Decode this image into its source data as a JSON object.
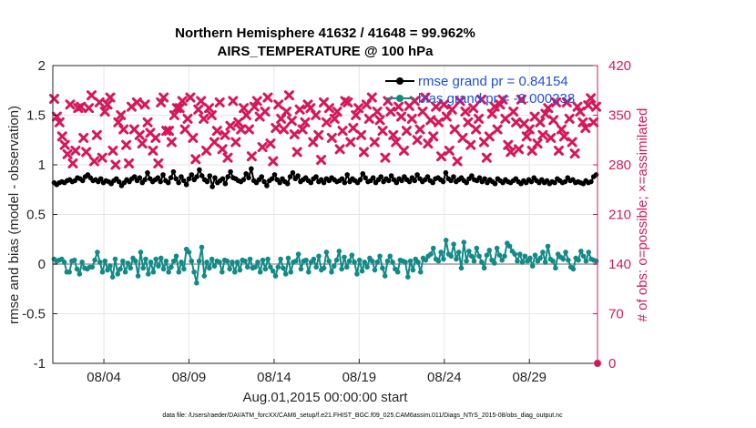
{
  "figure": {
    "title_line1": "Northern Hemisphere 41632 / 41648 = 99.962%",
    "title_line2": "AIRS_TEMPERATURE @ 100 hPa",
    "xlabel": "Aug.01,2015 00:00:00 start",
    "ylabel_left": "rmse and bias (model - observation)",
    "ylabel_right": "# of obs: o=possible; ×=assimilated",
    "footnote": "data file: /Users/raeder/DAI/ATM_forcXX/CAM6_setup/f.e21.FHIST_BGC.f09_025.CAM6assim.011/Diags_NTrS_2015-08/obs_diag_output.nc"
  },
  "colors": {
    "rmse": "#000000",
    "bias": "#138a86",
    "obs": "#d6185b",
    "legend_text": "#1f4fe0",
    "zero_line": "#b4b4b4",
    "grid": "#e6e6e6"
  },
  "chart_data": {
    "type": "line",
    "x_range_days": [
      0,
      32
    ],
    "x_ticks": [
      {
        "day": 3,
        "label": "08/04"
      },
      {
        "day": 8,
        "label": "08/09"
      },
      {
        "day": 13,
        "label": "08/14"
      },
      {
        "day": 18,
        "label": "08/19"
      },
      {
        "day": 23,
        "label": "08/24"
      },
      {
        "day": 28,
        "label": "08/29"
      }
    ],
    "y_left": {
      "min": -1,
      "max": 2,
      "ticks": [
        "-1",
        "-0.5",
        "0",
        "0.5",
        "1",
        "1.5",
        "2"
      ]
    },
    "y_right": {
      "min": 0,
      "max": 420,
      "ticks": [
        "0",
        "70",
        "140",
        "210",
        "280",
        "350",
        "420"
      ]
    },
    "legend": [
      {
        "key": "rmse",
        "label": "rmse grand pr =  0.84154"
      },
      {
        "key": "bias",
        "label": "bias grand pr = -0.000238"
      }
    ],
    "series": [
      {
        "key": "rmse",
        "axis": "left",
        "values": [
          0.82,
          0.8,
          0.82,
          0.83,
          0.82,
          0.84,
          0.85,
          0.83,
          0.84,
          0.87,
          0.86,
          0.84,
          0.88,
          0.9,
          0.87,
          0.84,
          0.85,
          0.83,
          0.86,
          0.82,
          0.84,
          0.83,
          0.81,
          0.84,
          0.86,
          0.83,
          0.79,
          0.82,
          0.85,
          0.83,
          0.86,
          0.88,
          0.84,
          0.87,
          0.82,
          0.85,
          0.92,
          0.86,
          0.83,
          0.85,
          0.87,
          0.83,
          0.9,
          0.84,
          0.82,
          0.87,
          0.93,
          0.86,
          0.82,
          0.88,
          0.84,
          0.8,
          0.86,
          0.9,
          0.85,
          0.88,
          0.95,
          0.89,
          0.85,
          0.83,
          0.89,
          0.78,
          0.87,
          0.82,
          0.84,
          0.86,
          0.81,
          0.88,
          0.93,
          0.87,
          0.86,
          0.84,
          0.83,
          0.85,
          0.91,
          0.87,
          0.96,
          0.84,
          0.82,
          0.85,
          0.88,
          0.83,
          0.79,
          0.84,
          0.86,
          0.9,
          0.85,
          0.82,
          0.86,
          0.83,
          0.81,
          0.88,
          0.92,
          0.86,
          0.89,
          0.83,
          0.85,
          0.87,
          0.84,
          0.82,
          0.86,
          0.88,
          0.83,
          0.85,
          0.82,
          0.86,
          0.84,
          0.87,
          0.85,
          0.83,
          0.84,
          0.86,
          0.82,
          0.9,
          0.83,
          0.86,
          0.84,
          0.82,
          0.85,
          0.91,
          0.87,
          0.83,
          0.84,
          0.87,
          0.82,
          0.85,
          0.88,
          0.83,
          0.86,
          0.84,
          0.89,
          0.85,
          0.82,
          0.86,
          0.84,
          0.88,
          0.85,
          0.83,
          0.87,
          0.84,
          0.9,
          0.86,
          0.83,
          0.85,
          0.88,
          0.84,
          0.82,
          0.86,
          0.87,
          0.85,
          0.83,
          0.92,
          0.86,
          0.84,
          0.88,
          0.83,
          0.85,
          0.87,
          0.84,
          0.82,
          0.86,
          0.89,
          0.85,
          0.84,
          0.87,
          0.83,
          0.86,
          0.82,
          0.85,
          0.83,
          0.81,
          0.86,
          0.84,
          0.82,
          0.85,
          0.83,
          0.82,
          0.84,
          0.86,
          0.83,
          0.81,
          0.84,
          0.82,
          0.85,
          0.83,
          0.87,
          0.84,
          0.82,
          0.85,
          0.82,
          0.84,
          0.81,
          0.83,
          0.82,
          0.86,
          0.84,
          0.82,
          0.83,
          0.87,
          0.84,
          0.85,
          0.82,
          0.83,
          0.82,
          0.81,
          0.84,
          0.82,
          0.83,
          0.88,
          0.9
        ]
      },
      {
        "key": "bias",
        "axis": "left",
        "values": [
          0.05,
          0.03,
          0.04,
          0.05,
          0.02,
          -0.08,
          -0.08,
          0.03,
          0.04,
          -0.05,
          -0.1,
          0.02,
          -0.04,
          -0.05,
          -0.03,
          -0.03,
          0.04,
          0.12,
          0.02,
          -0.08,
          0.03,
          -0.06,
          -0.02,
          -0.13,
          0.05,
          -0.1,
          -0.05,
          0.03,
          -0.08,
          0.01,
          -0.04,
          0.06,
          0.03,
          -0.12,
          0.12,
          -0.04,
          0.05,
          -0.1,
          0.02,
          -0.08,
          0.05,
          -0.02,
          0.06,
          -0.05,
          0.03,
          -0.08,
          -0.03,
          0.03,
          0.08,
          -0.08,
          0.02,
          -0.05,
          0.15,
          0.12,
          0.03,
          -0.08,
          -0.19,
          0.03,
          0.17,
          -0.12,
          0.02,
          -0.04,
          0.05,
          -0.02,
          0.03,
          0.02,
          -0.08,
          0.04,
          0.03,
          -0.05,
          0.02,
          -0.08,
          0.02,
          -0.06,
          0.04,
          0.03,
          -0.03,
          0.05,
          -0.04,
          -0.03,
          0.02,
          -0.08,
          0.04,
          -0.05,
          0.05,
          -0.03,
          -0.07,
          -0.12,
          -0.03,
          0.05,
          -0.04,
          -0.1,
          0.06,
          -0.08,
          0.02,
          0.03,
          0.1,
          -0.05,
          0.03,
          0.04,
          -0.08,
          0.02,
          0.05,
          -0.03,
          0.08,
          -0.06,
          -0.04,
          0.12,
          0.03,
          -0.08,
          -0.02,
          0.04,
          0.13,
          -0.05,
          0.07,
          -0.03,
          0.03,
          0.09,
          0.02,
          -0.1,
          0.04,
          -0.07,
          0.02,
          -0.03,
          0.06,
          0.03,
          -0.06,
          0.02,
          0.08,
          -0.04,
          -0.12,
          0.03,
          0.08,
          0.02,
          -0.05,
          -0.08,
          0.04,
          0.03,
          0.02,
          -0.13,
          0.03,
          -0.06,
          0.05,
          0.02,
          -0.08,
          0.06,
          0.04,
          0.08,
          0.1,
          0.16,
          0.05,
          0.03,
          0.12,
          0.05,
          0.24,
          0.1,
          0.08,
          0.2,
          0.05,
          0.12,
          -0.04,
          0.22,
          0.03,
          0.13,
          0.08,
          0.03,
          0.16,
          0.08,
          0.02,
          -0.04,
          0.09,
          0.14,
          0.04,
          0.01,
          0.16,
          0.09,
          0.04,
          0.08,
          0.21,
          0.18,
          0.13,
          0.1,
          0.03,
          0.1,
          0.02,
          0.08,
          0.03,
          0.06,
          -0.02,
          0.09,
          0.03,
          0.06,
          0.12,
          0.02,
          0.18,
          0.05,
          0.03,
          -0.04,
          0.1,
          0.07,
          0.05,
          0.12,
          0.04,
          -0.03,
          -0.05,
          0.06,
          0.04,
          0.13,
          0.08,
          0.03,
          0.12,
          0.05,
          0.04,
          0.03
        ]
      },
      {
        "key": "obs_assimilated",
        "axis": "right",
        "marker": "x",
        "values": [
          373,
          348,
          340,
          320,
          308,
          295,
          365,
          282,
          300,
          360,
          362,
          318,
          298,
          360,
          378,
          285,
          322,
          368,
          290,
          355,
          365,
          375,
          300,
          280,
          340,
          350,
          330,
          308,
          282,
          362,
          330,
          368,
          322,
          310,
          365,
          340,
          325,
          300,
          318,
          282,
          368,
          375,
          328,
          328,
          312,
          350,
          360,
          360,
          370,
          330,
          345,
          375,
          318,
          288,
          358,
          370,
          345,
          300,
          360,
          350,
          312,
          328,
          368,
          302,
          322,
          290,
          335,
          370,
          312,
          340,
          330,
          360,
          350,
          330,
          292,
          362,
          370,
          348,
          305,
          355,
          375,
          310,
          285,
          332,
          365,
          345,
          330,
          355,
          378,
          342,
          323,
          298,
          358,
          330,
          340,
          365,
          360,
          312,
          350,
          322,
          287,
          368,
          340,
          360,
          318,
          345,
          355,
          302,
          328,
          370,
          368,
          312,
          332,
          350,
          360,
          322,
          298,
          365,
          345,
          375,
          312,
          355,
          343,
          328,
          290,
          370,
          355,
          322,
          312,
          362,
          348,
          300,
          328,
          363,
          345,
          370,
          315,
          330,
          355,
          375,
          310,
          343,
          320,
          362,
          340,
          292,
          365,
          348,
          300,
          358,
          330,
          285,
          370,
          318,
          355,
          340,
          308,
          360,
          330,
          345,
          372,
          312,
          290,
          320,
          352,
          362,
          330,
          365,
          372,
          345,
          308,
          298,
          355,
          340,
          302,
          372,
          338,
          320,
          330,
          300,
          348,
          310,
          340,
          322,
          352,
          360,
          318,
          343,
          368,
          300,
          330,
          320,
          368,
          345,
          312,
          296,
          362,
          355,
          340,
          332,
          364,
          374,
          340,
          362
        ]
      },
      {
        "key": "obs_possible",
        "axis": "right",
        "marker": "o",
        "values": [
          0
        ]
      }
    ]
  }
}
